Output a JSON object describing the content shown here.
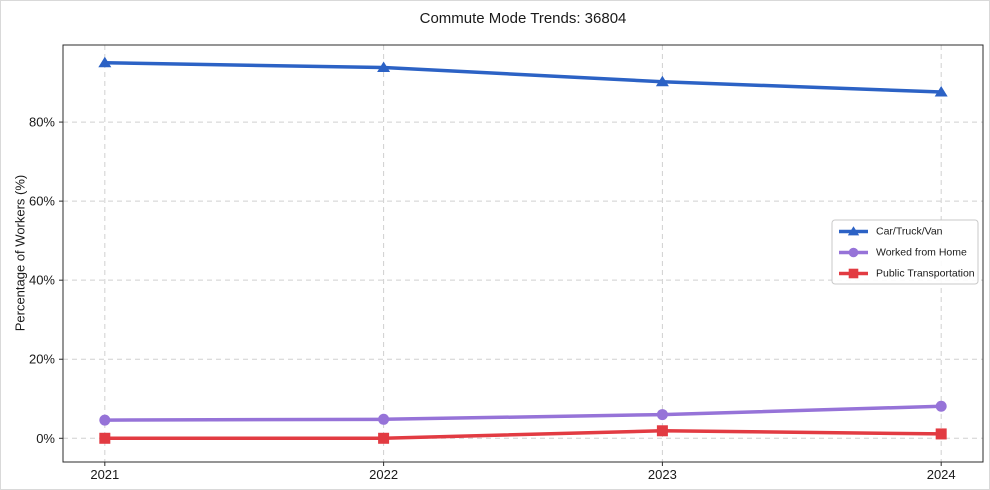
{
  "figure": {
    "title": "Commute Mode Trends: 36804"
  },
  "chart_data": {
    "type": "line",
    "title": "Commute Mode Trends: 36804",
    "xlabel": "",
    "ylabel": "Percentage of Workers (%)",
    "categories": [
      2021,
      2022,
      2023,
      2024
    ],
    "x_tick_labels": [
      "2021",
      "2022",
      "2023",
      "2024"
    ],
    "series": [
      {
        "name": "Car/Truck/Van",
        "values": [
          95.0,
          93.8,
          90.2,
          87.6
        ],
        "color": "#2c62c5",
        "marker": "triangle"
      },
      {
        "name": "Worked from Home",
        "values": [
          4.6,
          4.8,
          6.0,
          8.1
        ],
        "color": "#9673d8",
        "marker": "circle"
      },
      {
        "name": "Public Transportation",
        "values": [
          0.0,
          0.0,
          1.9,
          1.1
        ],
        "color": "#e23b42",
        "marker": "square"
      }
    ],
    "y_ticks": [
      {
        "v": 0,
        "label": "0%"
      },
      {
        "v": 20,
        "label": "20%"
      },
      {
        "v": 40,
        "label": "40%"
      },
      {
        "v": 60,
        "label": "60%"
      },
      {
        "v": 80,
        "label": "80%"
      }
    ],
    "ylim": [
      -6,
      99.5
    ],
    "xlim": [
      2020.85,
      2024.15
    ],
    "grid": true,
    "grid_style": "dashed",
    "legend_position": "center-right",
    "colors": {
      "grid": "#d0d0d0",
      "spine": "#2b2b2b",
      "legend_border": "#c9c9c9",
      "legend_bg": "#ffffff",
      "text": "#1a1a1a"
    }
  }
}
